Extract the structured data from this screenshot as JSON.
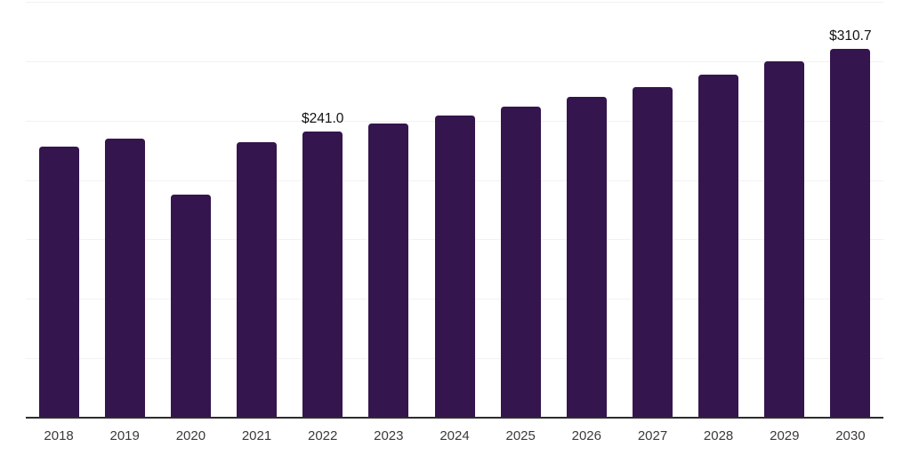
{
  "chart_data": {
    "type": "bar",
    "title": "",
    "xlabel": "",
    "ylabel": "",
    "categories": [
      "2018",
      "2019",
      "2020",
      "2021",
      "2022",
      "2023",
      "2024",
      "2025",
      "2026",
      "2027",
      "2028",
      "2029",
      "2030"
    ],
    "values": [
      228.2,
      235.2,
      187.4,
      231.7,
      241.0,
      247.9,
      254.1,
      262.1,
      270.0,
      278.5,
      288.5,
      300.0,
      310.7
    ],
    "data_labels": [
      "",
      "",
      "",
      "",
      "$241.0",
      "",
      "",
      "",
      "",
      "",
      "",
      "",
      "$310.7"
    ],
    "ylim": [
      0,
      350
    ],
    "gridline_step": 50,
    "grid": true,
    "legend": false,
    "colors": {
      "bar": "#35154D",
      "axis_line": "#2d2d2d",
      "gridline": "#f2f2f4",
      "tick_label": "#3a3a3a",
      "data_label": "#111111",
      "background": "#ffffff"
    }
  }
}
